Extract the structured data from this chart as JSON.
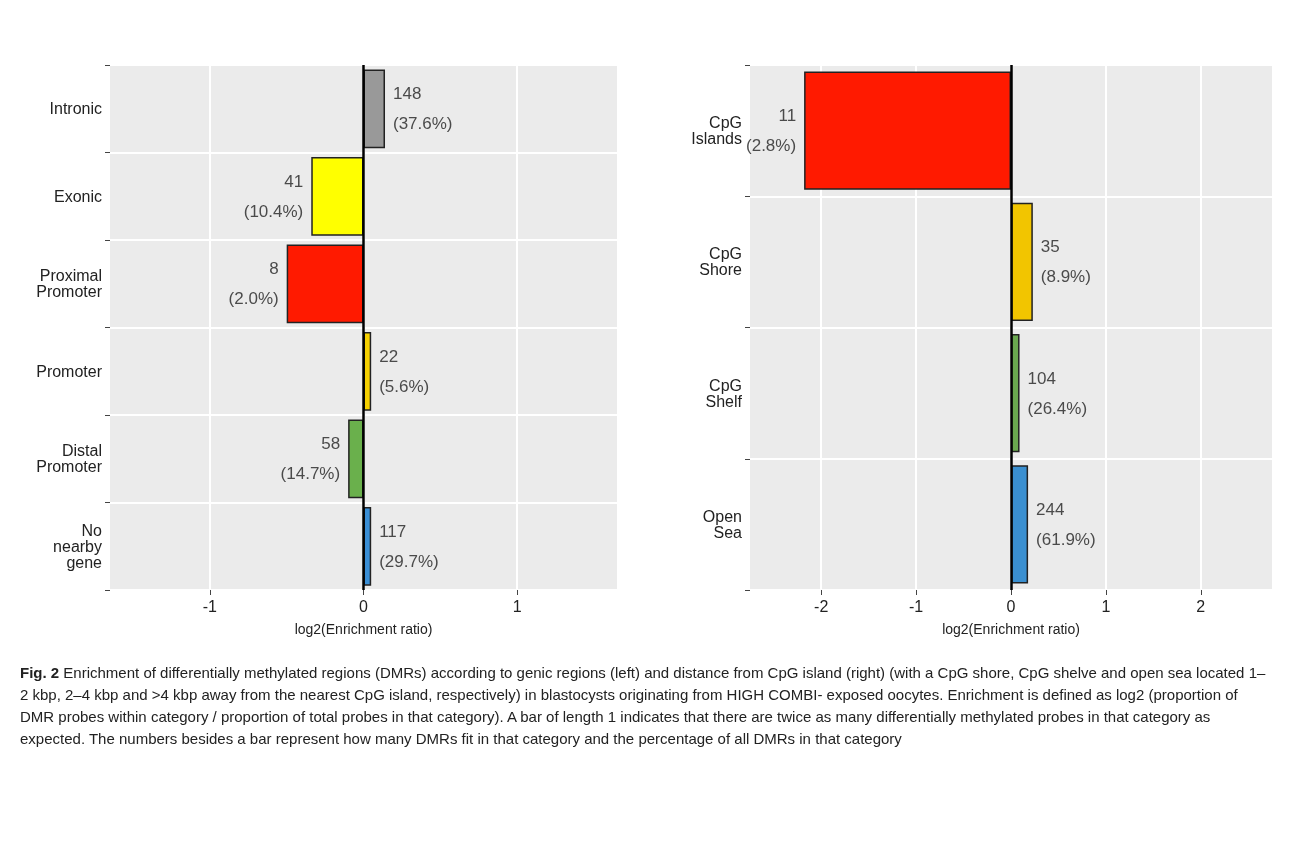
{
  "chart_data": [
    {
      "type": "bar",
      "orientation": "horizontal",
      "xlabel": "log2(Enrichment ratio)",
      "categories": [
        "Intronic",
        "Exonic",
        "Proximal Promoter",
        "Promoter",
        "Distal Promoter",
        "No nearby gene"
      ],
      "values": [
        0.14,
        -0.34,
        -0.5,
        0.05,
        -0.1,
        0.05
      ],
      "colors": [
        "#999999",
        "#ffff00",
        "#ff1a00",
        "#f5d000",
        "#6ab04c",
        "#3a8fd6"
      ],
      "xlim": [
        -1.65,
        1.65
      ],
      "xticks": [
        -1,
        0,
        1
      ],
      "grid": true,
      "annotations": [
        "Fig. 2",
        "Enrichment of differentially methylated regions (DMRs) according to genic regions (left) and distance from CpG island (right) (with a CpG shore, CpG shelve and open sea located 1–2 kbp, 2–4 kbp and >4 kbp away from the nearest CpG island, respectively) in blastocysts originating from HIGH COMBI- exposed oocytes. Enrichment is defined as log2 (proportion of DMR probes within category / proportion of total probes in that category). A bar of length 1 indicates that there are twice as many differentially methylated probes in that category as expected. The numbers besides a bar represent how many DMRs fit in that category and the percentage of all DMRs in that category",
        {
          "text": "148 (37.6%)",
          "x": 0.14,
          "y": "Intronic"
        },
        {
          "text": "41 (10.4%)",
          "x": -0.34,
          "y": "Exonic"
        },
        {
          "text": "8 (2.0%)",
          "x": -0.5,
          "y": "Proximal Promoter"
        },
        {
          "text": "22 (5.6%)",
          "x": 0.05,
          "y": "Promoter"
        },
        {
          "text": "58 (14.7%)",
          "x": -0.1,
          "y": "Distal Promoter"
        },
        {
          "text": "117 (29.7%)",
          "x": 0.05,
          "y": "No nearby gene"
        }
      ]
    },
    {
      "type": "bar",
      "orientation": "horizontal",
      "xlabel": "log2(Enrichment ratio)",
      "categories": [
        "CpG Islands",
        "CpG Shore",
        "CpG Shelf",
        "Open Sea"
      ],
      "values": [
        -2.18,
        0.23,
        0.09,
        0.18
      ],
      "colors": [
        "#ff1a00",
        "#f2c500",
        "#6aa84f",
        "#3a8fd0"
      ],
      "xlim": [
        -2.75,
        2.75
      ],
      "xticks": [
        -2,
        -1,
        0,
        1,
        2
      ],
      "grid": true,
      "annotations": [
        {
          "text": "11 (2.8%)",
          "x": -2.18,
          "y": "CpG Islands"
        },
        {
          "text": "35 (8.9%)",
          "x": 0.23,
          "y": "CpG Shore"
        },
        {
          "text": "104 (26.4%)",
          "x": 0.09,
          "y": "CpG Shelf"
        },
        {
          "text": "244 (61.9%)",
          "x": 0.18,
          "y": "Open Sea"
        }
      ]
    }
  ]
}
